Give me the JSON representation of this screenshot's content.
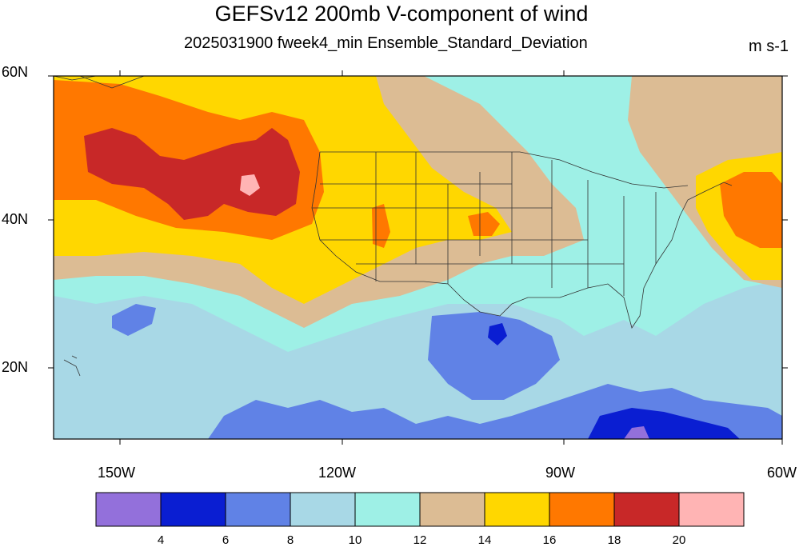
{
  "title": "GEFSv12 200mb V-component of wind",
  "subtitle": "2025031900 fweek4_min Ensemble_Standard_Deviation",
  "units": "m s-1",
  "lat_labels": [
    "60N",
    "40N",
    "20N"
  ],
  "lon_labels": [
    "150W",
    "120W",
    "90W",
    "60W"
  ],
  "colorbar": {
    "labels": [
      "4",
      "6",
      "8",
      "10",
      "12",
      "14",
      "16",
      "18",
      "20"
    ],
    "colors": [
      "#9370db",
      "#0a1ed2",
      "#6082e6",
      "#a8d8e6",
      "#9ef0e6",
      "#dcbc94",
      "#ffd700",
      "#ff7800",
      "#c82828",
      "#ffb4b4"
    ]
  },
  "map": {
    "lat_range": [
      10,
      60
    ],
    "lon_range": [
      -160,
      -60
    ],
    "field": "200mb V-wind ensemble standard deviation"
  }
}
